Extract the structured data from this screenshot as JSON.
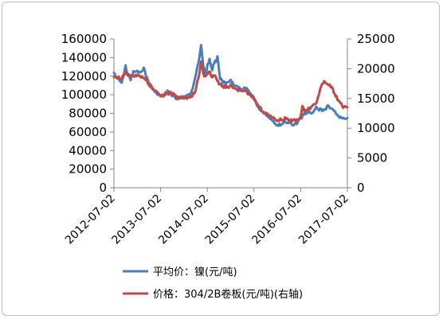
{
  "chart_data": {
    "type": "line",
    "x_ticks": [
      "2012-07-02",
      "2013-07-02",
      "2014-07-02",
      "2015-07-02",
      "2016-07-02",
      "2017-07-02"
    ],
    "y_left": {
      "ticks": [
        "0",
        "20000",
        "40000",
        "60000",
        "80000",
        "100000",
        "120000",
        "140000",
        "160000"
      ],
      "min": 0,
      "max": 160000
    },
    "y_right": {
      "ticks": [
        "0",
        "5000",
        "10000",
        "15000",
        "20000",
        "25000"
      ],
      "min": 0,
      "max": 25000
    },
    "grid": false,
    "legend_position": "bottom",
    "series": [
      {
        "name": "平均价：镍(元/吨)",
        "axis": "left",
        "color": "#4a7ebb",
        "points": [
          [
            "2012-07-02",
            122000
          ],
          [
            "2012-08-01",
            118000
          ],
          [
            "2012-09-01",
            114000
          ],
          [
            "2012-09-15",
            120000
          ],
          [
            "2012-10-01",
            130000
          ],
          [
            "2012-10-20",
            122000
          ],
          [
            "2012-11-10",
            117000
          ],
          [
            "2012-12-01",
            124000
          ],
          [
            "2013-01-01",
            126000
          ],
          [
            "2013-02-01",
            124000
          ],
          [
            "2013-02-20",
            129000
          ],
          [
            "2013-03-10",
            120000
          ],
          [
            "2013-04-01",
            114000
          ],
          [
            "2013-05-01",
            106000
          ],
          [
            "2013-06-01",
            102000
          ],
          [
            "2013-07-02",
            99000
          ],
          [
            "2013-08-01",
            101000
          ],
          [
            "2013-09-01",
            104000
          ],
          [
            "2013-10-01",
            99000
          ],
          [
            "2013-11-01",
            97000
          ],
          [
            "2013-12-01",
            96000
          ],
          [
            "2014-01-01",
            97000
          ],
          [
            "2014-02-01",
            99000
          ],
          [
            "2014-02-20",
            102000
          ],
          [
            "2014-03-10",
            108000
          ],
          [
            "2014-04-01",
            120000
          ],
          [
            "2014-05-01",
            140000
          ],
          [
            "2014-05-15",
            152000
          ],
          [
            "2014-06-01",
            131000
          ],
          [
            "2014-06-20",
            120000
          ],
          [
            "2014-07-05",
            133000
          ],
          [
            "2014-07-20",
            138000
          ],
          [
            "2014-08-10",
            128000
          ],
          [
            "2014-09-01",
            135000
          ],
          [
            "2014-09-20",
            140000
          ],
          [
            "2014-10-10",
            118000
          ],
          [
            "2014-11-01",
            113000
          ],
          [
            "2014-12-01",
            112000
          ],
          [
            "2015-01-01",
            116000
          ],
          [
            "2015-02-01",
            110000
          ],
          [
            "2015-03-01",
            108000
          ],
          [
            "2015-04-01",
            104000
          ],
          [
            "2015-05-01",
            108000
          ],
          [
            "2015-06-01",
            101000
          ],
          [
            "2015-07-02",
            96000
          ],
          [
            "2015-08-01",
            88000
          ],
          [
            "2015-09-01",
            83000
          ],
          [
            "2015-10-01",
            80000
          ],
          [
            "2015-11-01",
            76000
          ],
          [
            "2015-12-01",
            71000
          ],
          [
            "2016-01-01",
            66000
          ],
          [
            "2016-02-01",
            69000
          ],
          [
            "2016-03-01",
            72000
          ],
          [
            "2016-04-01",
            70000
          ],
          [
            "2016-05-01",
            68000
          ],
          [
            "2016-06-01",
            70000
          ],
          [
            "2016-07-02",
            74000
          ],
          [
            "2016-08-01",
            80000
          ],
          [
            "2016-09-01",
            82000
          ],
          [
            "2016-10-01",
            80000
          ],
          [
            "2016-11-01",
            86000
          ],
          [
            "2016-12-01",
            84000
          ],
          [
            "2017-01-01",
            82000
          ],
          [
            "2017-02-01",
            88000
          ],
          [
            "2017-03-01",
            85000
          ],
          [
            "2017-04-01",
            80000
          ],
          [
            "2017-05-01",
            76000
          ],
          [
            "2017-06-01",
            74000
          ],
          [
            "2017-07-02",
            75000
          ]
        ]
      },
      {
        "name": "价格：304/2B卷板(元/吨)(右轴)",
        "axis": "right",
        "color": "#be4b48",
        "points": [
          [
            "2012-07-02",
            18800
          ],
          [
            "2012-08-01",
            18600
          ],
          [
            "2012-09-01",
            18300
          ],
          [
            "2012-10-01",
            19400
          ],
          [
            "2012-11-01",
            18800
          ],
          [
            "2012-12-01",
            18900
          ],
          [
            "2013-01-01",
            18900
          ],
          [
            "2013-02-01",
            18700
          ],
          [
            "2013-03-01",
            18500
          ],
          [
            "2013-04-01",
            17500
          ],
          [
            "2013-05-01",
            16600
          ],
          [
            "2013-06-01",
            15900
          ],
          [
            "2013-07-02",
            15500
          ],
          [
            "2013-08-01",
            15600
          ],
          [
            "2013-09-01",
            15900
          ],
          [
            "2013-10-01",
            16000
          ],
          [
            "2013-11-01",
            15300
          ],
          [
            "2013-12-01",
            15200
          ],
          [
            "2014-01-01",
            15200
          ],
          [
            "2014-02-01",
            15200
          ],
          [
            "2014-03-01",
            15300
          ],
          [
            "2014-04-01",
            16200
          ],
          [
            "2014-05-01",
            19200
          ],
          [
            "2014-05-15",
            21000
          ],
          [
            "2014-06-01",
            19000
          ],
          [
            "2014-06-20",
            18700
          ],
          [
            "2014-07-15",
            19500
          ],
          [
            "2014-08-10",
            18700
          ],
          [
            "2014-09-01",
            18900
          ],
          [
            "2014-10-01",
            17600
          ],
          [
            "2014-11-01",
            17000
          ],
          [
            "2014-12-01",
            16900
          ],
          [
            "2015-01-01",
            17200
          ],
          [
            "2015-02-01",
            16800
          ],
          [
            "2015-03-01",
            16500
          ],
          [
            "2015-04-01",
            16000
          ],
          [
            "2015-05-01",
            16300
          ],
          [
            "2015-06-01",
            15500
          ],
          [
            "2015-07-02",
            15000
          ],
          [
            "2015-08-01",
            13800
          ],
          [
            "2015-09-01",
            13000
          ],
          [
            "2015-10-01",
            12500
          ],
          [
            "2015-11-01",
            12200
          ],
          [
            "2015-12-01",
            11600
          ],
          [
            "2016-01-01",
            11300
          ],
          [
            "2016-02-01",
            11500
          ],
          [
            "2016-03-01",
            11600
          ],
          [
            "2016-04-01",
            11400
          ],
          [
            "2016-05-01",
            11300
          ],
          [
            "2016-06-01",
            11300
          ],
          [
            "2016-07-02",
            11800
          ],
          [
            "2016-07-15",
            13500
          ],
          [
            "2016-08-01",
            13000
          ],
          [
            "2016-09-01",
            13200
          ],
          [
            "2016-10-01",
            13600
          ],
          [
            "2016-11-01",
            14200
          ],
          [
            "2016-12-01",
            16500
          ],
          [
            "2017-01-01",
            18000
          ],
          [
            "2017-02-01",
            17500
          ],
          [
            "2017-03-01",
            17000
          ],
          [
            "2017-04-01",
            15500
          ],
          [
            "2017-05-01",
            14500
          ],
          [
            "2017-06-01",
            13600
          ],
          [
            "2017-07-02",
            13500
          ]
        ]
      }
    ]
  },
  "legend": {
    "items": [
      {
        "label": "平均价：镍(元/吨)",
        "color": "#4a7ebb"
      },
      {
        "label": "价格：304/2B卷板(元/吨)(右轴)",
        "color": "#be4b48"
      }
    ]
  }
}
